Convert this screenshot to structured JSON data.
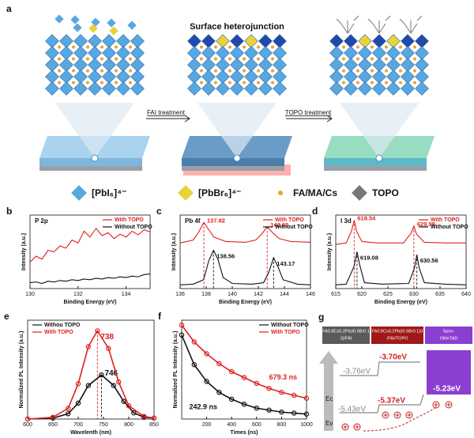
{
  "panel_a": {
    "label": "a",
    "heading": "Surface heterojunction",
    "step1": "FAI treatment",
    "step2": "TOPO treatment",
    "legend": [
      "[PbI₆]⁴⁻",
      "[PbBr₆]⁴⁻",
      "FA/MA/Cs",
      "TOPO"
    ]
  },
  "chart_data": [
    {
      "type": "line",
      "panel": "b",
      "label": "P 2p",
      "xlabel": "Binding Energy (eV)",
      "ylabel": "Intensity (a.u.)",
      "xlim": [
        130,
        135
      ],
      "xticks": [
        130,
        132,
        134
      ],
      "ylim": [
        0,
        1
      ],
      "legend": "upper right",
      "series": [
        {
          "name": "With TOPO",
          "color": "#e02020",
          "x": [
            130,
            130.25,
            130.5,
            130.75,
            131,
            131.25,
            131.5,
            131.75,
            132,
            132.25,
            132.5,
            132.75,
            133,
            133.25,
            133.5,
            133.75,
            134,
            134.25,
            134.5,
            134.75,
            135
          ],
          "values": [
            0.36,
            0.44,
            0.4,
            0.52,
            0.5,
            0.58,
            0.55,
            0.66,
            0.62,
            0.78,
            0.7,
            0.82,
            0.72,
            0.76,
            0.68,
            0.74,
            0.7,
            0.78,
            0.73,
            0.8,
            0.77
          ]
        },
        {
          "name": "Without TOPO",
          "color": "#111111",
          "x": [
            130,
            130.25,
            130.5,
            130.75,
            131,
            131.25,
            131.5,
            131.75,
            132,
            132.25,
            132.5,
            132.75,
            133,
            133.25,
            133.5,
            133.75,
            134,
            134.25,
            134.5,
            134.75,
            135
          ],
          "values": [
            0.08,
            0.09,
            0.07,
            0.1,
            0.09,
            0.11,
            0.1,
            0.12,
            0.11,
            0.13,
            0.12,
            0.14,
            0.13,
            0.15,
            0.14,
            0.16,
            0.15,
            0.17,
            0.16,
            0.19,
            0.2
          ]
        }
      ]
    },
    {
      "type": "line",
      "panel": "c",
      "label": "Pb 4f",
      "xlabel": "Binding Energy (eV)",
      "ylabel": "Intensity (a.u.)",
      "xlim": [
        136,
        146
      ],
      "xticks": [
        136,
        138,
        140,
        142,
        144,
        146
      ],
      "ylim": [
        0,
        1
      ],
      "legend": "upper right",
      "series": [
        {
          "name": "With TOPO",
          "color": "#e02020",
          "x": [
            136,
            137,
            137.4,
            137.82,
            138.2,
            138.6,
            139.5,
            141,
            141.8,
            142.3,
            142.68,
            143.1,
            143.6,
            144.5,
            146
          ],
          "values": [
            0.62,
            0.66,
            0.76,
            0.9,
            0.8,
            0.7,
            0.64,
            0.63,
            0.66,
            0.75,
            0.84,
            0.76,
            0.68,
            0.64,
            0.63
          ],
          "peak_labels": [
            137.82,
            142.68
          ]
        },
        {
          "name": "Without TOPO",
          "color": "#111111",
          "x": [
            136,
            137,
            137.8,
            138.2,
            138.56,
            138.9,
            139.3,
            140,
            141.5,
            142.4,
            142.8,
            143.17,
            143.5,
            143.9,
            145,
            146
          ],
          "values": [
            0.05,
            0.06,
            0.12,
            0.38,
            0.52,
            0.4,
            0.15,
            0.07,
            0.06,
            0.08,
            0.22,
            0.42,
            0.3,
            0.12,
            0.06,
            0.05
          ],
          "peak_labels": [
            138.56,
            143.17
          ]
        }
      ]
    },
    {
      "type": "line",
      "panel": "d",
      "label": "I 3d",
      "xlabel": "Binding Energy (eV)",
      "ylabel": "Intensity (a.u.)",
      "xlim": [
        615,
        640
      ],
      "xticks": [
        615,
        620,
        625,
        630,
        635,
        640
      ],
      "ylim": [
        0,
        1
      ],
      "legend": "upper right",
      "series": [
        {
          "name": "With TOPO",
          "color": "#e02020",
          "x": [
            615,
            617,
            618,
            618.54,
            619,
            620,
            623,
            628,
            629.5,
            629.98,
            630.5,
            632,
            636,
            640
          ],
          "values": [
            0.6,
            0.62,
            0.78,
            0.93,
            0.78,
            0.64,
            0.62,
            0.62,
            0.76,
            0.85,
            0.74,
            0.63,
            0.62,
            0.62
          ],
          "peak_labels": [
            618.54,
            629.98
          ]
        },
        {
          "name": "Without TOPO",
          "color": "#111111",
          "x": [
            615,
            617,
            618.5,
            619.08,
            619.6,
            620.5,
            624,
            629,
            630.1,
            630.56,
            631,
            632,
            636,
            640
          ],
          "values": [
            0.05,
            0.06,
            0.3,
            0.5,
            0.32,
            0.08,
            0.06,
            0.07,
            0.28,
            0.46,
            0.28,
            0.08,
            0.06,
            0.05
          ],
          "peak_labels": [
            619.08,
            630.56
          ]
        }
      ]
    },
    {
      "type": "line",
      "panel": "e",
      "xlabel": "Wavelenth (nm)",
      "ylabel": "Normalized PL Intensity (a.u.)",
      "xlim": [
        600,
        850
      ],
      "xticks": [
        600,
        650,
        700,
        750,
        800,
        850
      ],
      "ylim": [
        0,
        1.12
      ],
      "legend": "upper left",
      "markers": true,
      "series": [
        {
          "name": "Withou TOPO",
          "color": "#111111",
          "x": [
            600,
            650,
            680,
            700,
            720,
            746,
            770,
            790,
            810,
            830,
            850
          ],
          "values": [
            0,
            0.01,
            0.06,
            0.18,
            0.38,
            0.5,
            0.38,
            0.2,
            0.07,
            0.02,
            0.01
          ],
          "peak_labels": [
            746
          ]
        },
        {
          "name": "With TOPO",
          "color": "#e02020",
          "x": [
            600,
            650,
            680,
            700,
            720,
            738,
            760,
            780,
            800,
            830,
            850
          ],
          "values": [
            0,
            0.02,
            0.12,
            0.4,
            0.82,
            1,
            0.8,
            0.42,
            0.15,
            0.03,
            0.01
          ],
          "peak_labels": [
            738
          ]
        }
      ]
    },
    {
      "type": "line",
      "panel": "f",
      "xlabel": "Times (ns)",
      "ylabel": "Normalized PL Intensity (a.u.)",
      "xlim": [
        0,
        1000
      ],
      "xticks": [
        200,
        400,
        600,
        800,
        1000
      ],
      "ylim": [
        0,
        1
      ],
      "legend": "upper right",
      "markers": true,
      "series": [
        {
          "name": "Without TOPO",
          "color": "#111111",
          "x": [
            0,
            100,
            200,
            300,
            400,
            500,
            600,
            700,
            800,
            900,
            1000
          ],
          "values": [
            0.85,
            0.55,
            0.38,
            0.27,
            0.2,
            0.15,
            0.11,
            0.09,
            0.07,
            0.06,
            0.05
          ],
          "annotation": "242.9 ns"
        },
        {
          "name": "With TOPO",
          "color": "#e02020",
          "x": [
            0,
            100,
            200,
            300,
            400,
            500,
            600,
            700,
            800,
            900,
            1000
          ],
          "values": [
            0.95,
            0.78,
            0.66,
            0.56,
            0.48,
            0.42,
            0.36,
            0.31,
            0.27,
            0.24,
            0.21
          ],
          "annotation": "679.3 ns"
        }
      ]
    }
  ],
  "panel_g": {
    "label": "g",
    "layers": [
      [
        "FA0.8Cs0.2Pb(I0.9Br0.1",
        "3)/FAI"
      ],
      [
        "FA0.8Cs0.2Pb(I0.9Br0.1)3",
        "/FAI/TOPO"
      ],
      [
        "Spiro-",
        "OMeTAD"
      ]
    ],
    "levels": [
      "-3.76eV",
      "-3.70eV",
      "-5.43eV",
      "-5.37eV",
      "-5.23eV"
    ],
    "ec": "Ec",
    "ev": "Ev"
  }
}
